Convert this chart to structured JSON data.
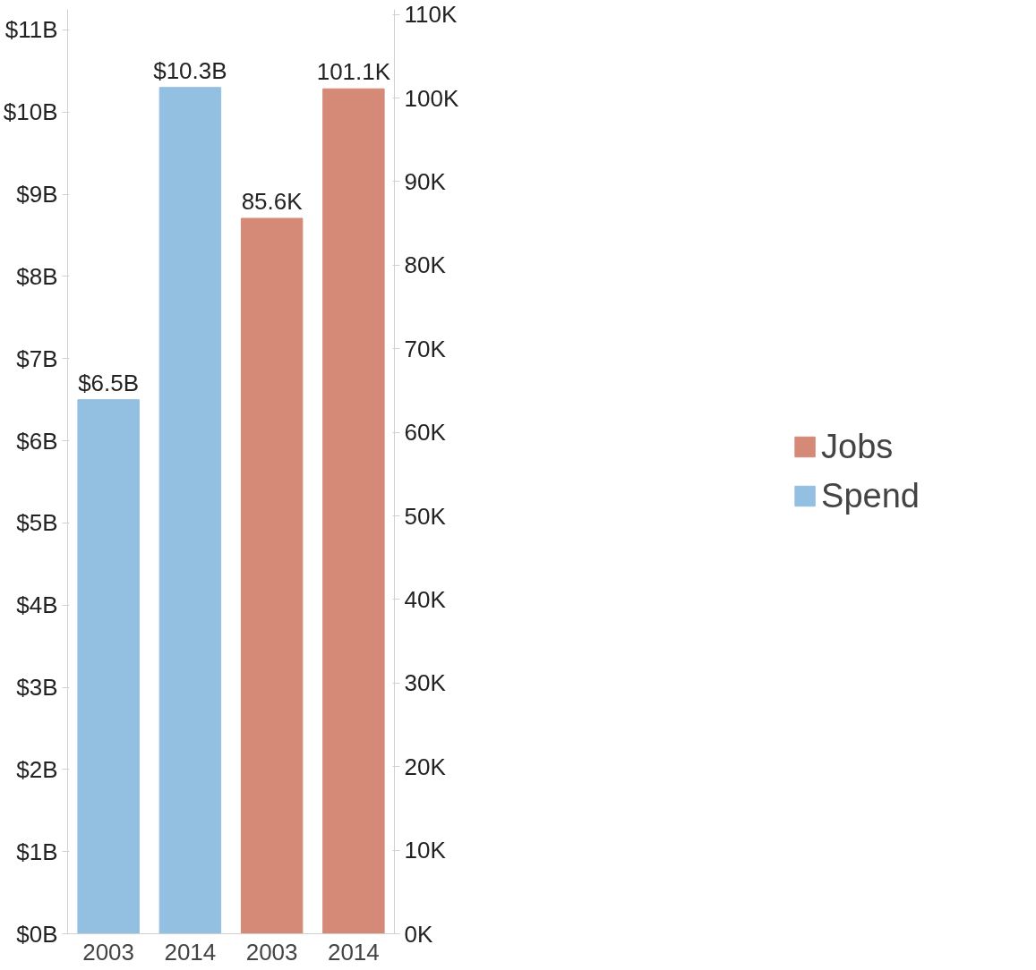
{
  "chart_data": {
    "type": "bar",
    "categories": [
      "2003",
      "2014",
      "2003",
      "2014"
    ],
    "series": [
      {
        "name": "Jobs",
        "color": "#d48a77",
        "axis": "y2",
        "values": [
          null,
          null,
          85.6,
          101.1
        ],
        "value_labels": [
          null,
          null,
          "85.6K",
          "101.1K"
        ]
      },
      {
        "name": "Spend",
        "color": "#93bfe1",
        "values": [
          6.5,
          10.3,
          null,
          null
        ],
        "value_labels": [
          "$6.5B",
          "$10.3B",
          null,
          null
        ]
      }
    ],
    "ylim": [
      0,
      11.25
    ],
    "yticks": [
      {
        "value": 0,
        "label": "$0B"
      },
      {
        "value": 1,
        "label": "$1B"
      },
      {
        "value": 2,
        "label": "$2B"
      },
      {
        "value": 3,
        "label": "$3B"
      },
      {
        "value": 4,
        "label": "$4B"
      },
      {
        "value": 5,
        "label": "$5B"
      },
      {
        "value": 6,
        "label": "$6B"
      },
      {
        "value": 7,
        "label": "$7B"
      },
      {
        "value": 8,
        "label": "$8B"
      },
      {
        "value": 9,
        "label": "$9B"
      },
      {
        "value": 10,
        "label": "$10B"
      },
      {
        "value": 11,
        "label": "$11B"
      }
    ],
    "y2lim": [
      0,
      110.6
    ],
    "y2ticks": [
      {
        "value": 0,
        "label": "0K"
      },
      {
        "value": 10,
        "label": "10K"
      },
      {
        "value": 20,
        "label": "20K"
      },
      {
        "value": 30,
        "label": "30K"
      },
      {
        "value": 40,
        "label": "40K"
      },
      {
        "value": 50,
        "label": "50K"
      },
      {
        "value": 60,
        "label": "60K"
      },
      {
        "value": 70,
        "label": "70K"
      },
      {
        "value": 80,
        "label": "80K"
      },
      {
        "value": 90,
        "label": "90K"
      },
      {
        "value": 100,
        "label": "100K"
      },
      {
        "value": 110,
        "label": "110K"
      }
    ],
    "grid": false,
    "legend": "right"
  }
}
